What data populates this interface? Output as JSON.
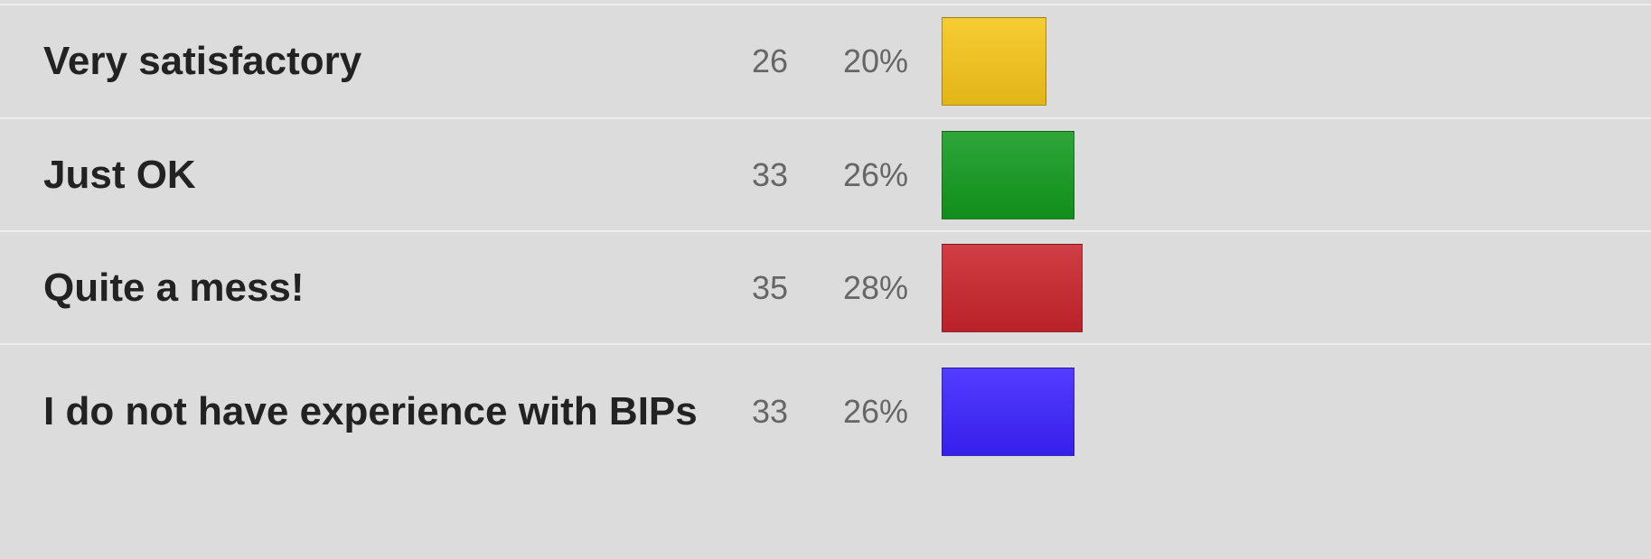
{
  "chart_data": {
    "type": "bar",
    "categories": [
      "Very satisfactory",
      "Just OK",
      "Quite a mess!",
      "I do not have experience with BIPs"
    ],
    "values": [
      26,
      33,
      35,
      33
    ],
    "percent_labels": [
      "20%",
      "26%",
      "28%",
      "26%"
    ],
    "colors": [
      "#f5c518",
      "#129a1e",
      "#c9242b",
      "#3a22ff"
    ]
  }
}
